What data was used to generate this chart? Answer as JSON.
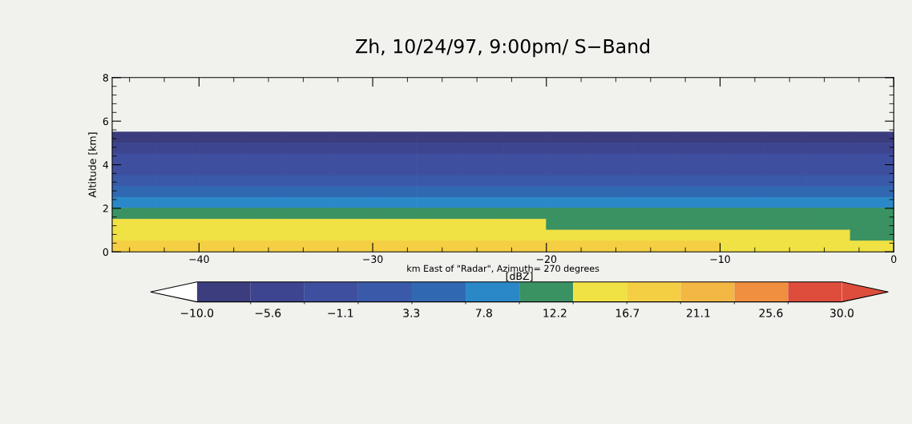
{
  "chart_data": {
    "type": "heatmap",
    "title": "Zh, 10/24/97, 9:00pm/ S−Band",
    "xlabel": "km East of \"Radar\", Azimuth= 270 degrees",
    "ylabel": "Altitude [km]",
    "clabel": "[dBZ]",
    "x": [
      -43.75,
      -41.25,
      -38.75,
      -36.25,
      -33.75,
      -31.25,
      -28.75,
      -26.25,
      -23.75,
      -21.25,
      -18.75,
      -16.25,
      -13.75,
      -11.25,
      -8.75,
      -6.25,
      -3.75,
      -1.25
    ],
    "y": [
      5.25,
      4.75,
      4.25,
      3.75,
      3.25,
      2.75,
      2.25,
      1.75,
      1.25,
      0.75,
      0.25
    ],
    "cells": [
      [
        -8.3,
        -8.3,
        -8.3,
        -8.3,
        -8.3,
        -8.3,
        -8.3,
        -8.3,
        -8.3,
        -8.3,
        -8.3,
        -8.3,
        -8.3,
        -8.3,
        -8.3,
        -8.3,
        -8.3,
        -8.3
      ],
      [
        -5,
        -5,
        -5,
        -5,
        -5,
        -5,
        -5,
        -5,
        -5,
        -5,
        -5,
        -5,
        -5,
        -5,
        -5,
        -5,
        -5,
        -5
      ],
      [
        -1.7,
        -1.7,
        -1.7,
        -1.7,
        -1.7,
        -1.7,
        -1.7,
        -1.7,
        -1.7,
        -1.7,
        -1.7,
        -1.7,
        -1.7,
        -1.7,
        -1.7,
        -1.7,
        -1.7,
        -1.7
      ],
      [
        -1.7,
        -1.7,
        -1.7,
        -1.7,
        -1.7,
        -1.7,
        -1.7,
        -1.7,
        -1.7,
        -1.7,
        -1.7,
        -1.7,
        -1.7,
        -1.7,
        -1.7,
        -1.7,
        -1.7,
        -1.7
      ],
      [
        1.7,
        1.7,
        1.7,
        1.7,
        1.7,
        1.7,
        1.7,
        1.7,
        1.7,
        1.7,
        1.7,
        1.7,
        1.7,
        1.7,
        1.7,
        1.7,
        1.7,
        1.7
      ],
      [
        5,
        5,
        5,
        5,
        5,
        5,
        5,
        5,
        5,
        5,
        5,
        5,
        5,
        5,
        5,
        5,
        5,
        5
      ],
      [
        8.3,
        8.3,
        8.3,
        8.3,
        8.3,
        8.3,
        8.3,
        8.3,
        8.3,
        8.3,
        8.3,
        8.3,
        8.3,
        8.3,
        8.3,
        8.3,
        8.3,
        8.3
      ],
      [
        11.7,
        11.7,
        11.7,
        11.7,
        11.7,
        11.7,
        11.7,
        11.7,
        11.7,
        11.7,
        11.7,
        11.7,
        11.7,
        11.7,
        11.7,
        11.7,
        11.7,
        11.7
      ],
      [
        15,
        15,
        15,
        15,
        15,
        15,
        15,
        15,
        15,
        15,
        11.7,
        11.7,
        11.7,
        11.7,
        11.7,
        11.7,
        11.7,
        11.7
      ],
      [
        15,
        15,
        15,
        15,
        15,
        15,
        15,
        15,
        15,
        15,
        15,
        15,
        15,
        15,
        15,
        15,
        15,
        11.7
      ],
      [
        18.3,
        18.3,
        18.3,
        18.3,
        18.3,
        18.3,
        18.3,
        18.3,
        18.3,
        18.3,
        18.3,
        18.3,
        18.3,
        18.3,
        15,
        15,
        15,
        15
      ]
    ],
    "colors": [
      "#3b3d7e",
      "#3e4590",
      "#3f4f9f",
      "#3a5aa9",
      "#3168b2",
      "#2b88c8",
      "#3a9262",
      "#f0e244",
      "#f4cf44",
      "#f3b743",
      "#ef8f3f",
      "#de4d3c"
    ],
    "clim": [
      -10,
      30
    ],
    "cticks": [
      {
        "value": -10,
        "label": "−10.0"
      },
      {
        "value": -5.6,
        "label": "−5.6"
      },
      {
        "value": -1.1,
        "label": "−1.1"
      },
      3.3,
      7.8,
      12.2,
      16.7,
      21.1,
      25.6,
      {
        "value": 30,
        "label": "30.0"
      }
    ],
    "xlim": [
      -45,
      0
    ],
    "xticks": [
      {
        "value": -40,
        "label": "−40"
      },
      {
        "value": -30,
        "label": "−30"
      },
      {
        "value": -20,
        "label": "−20"
      },
      {
        "value": -10,
        "label": "−10"
      },
      0
    ],
    "ylim": [
      0,
      8
    ],
    "yticks": [
      0,
      2,
      4,
      6,
      8
    ],
    "grid": false
  }
}
